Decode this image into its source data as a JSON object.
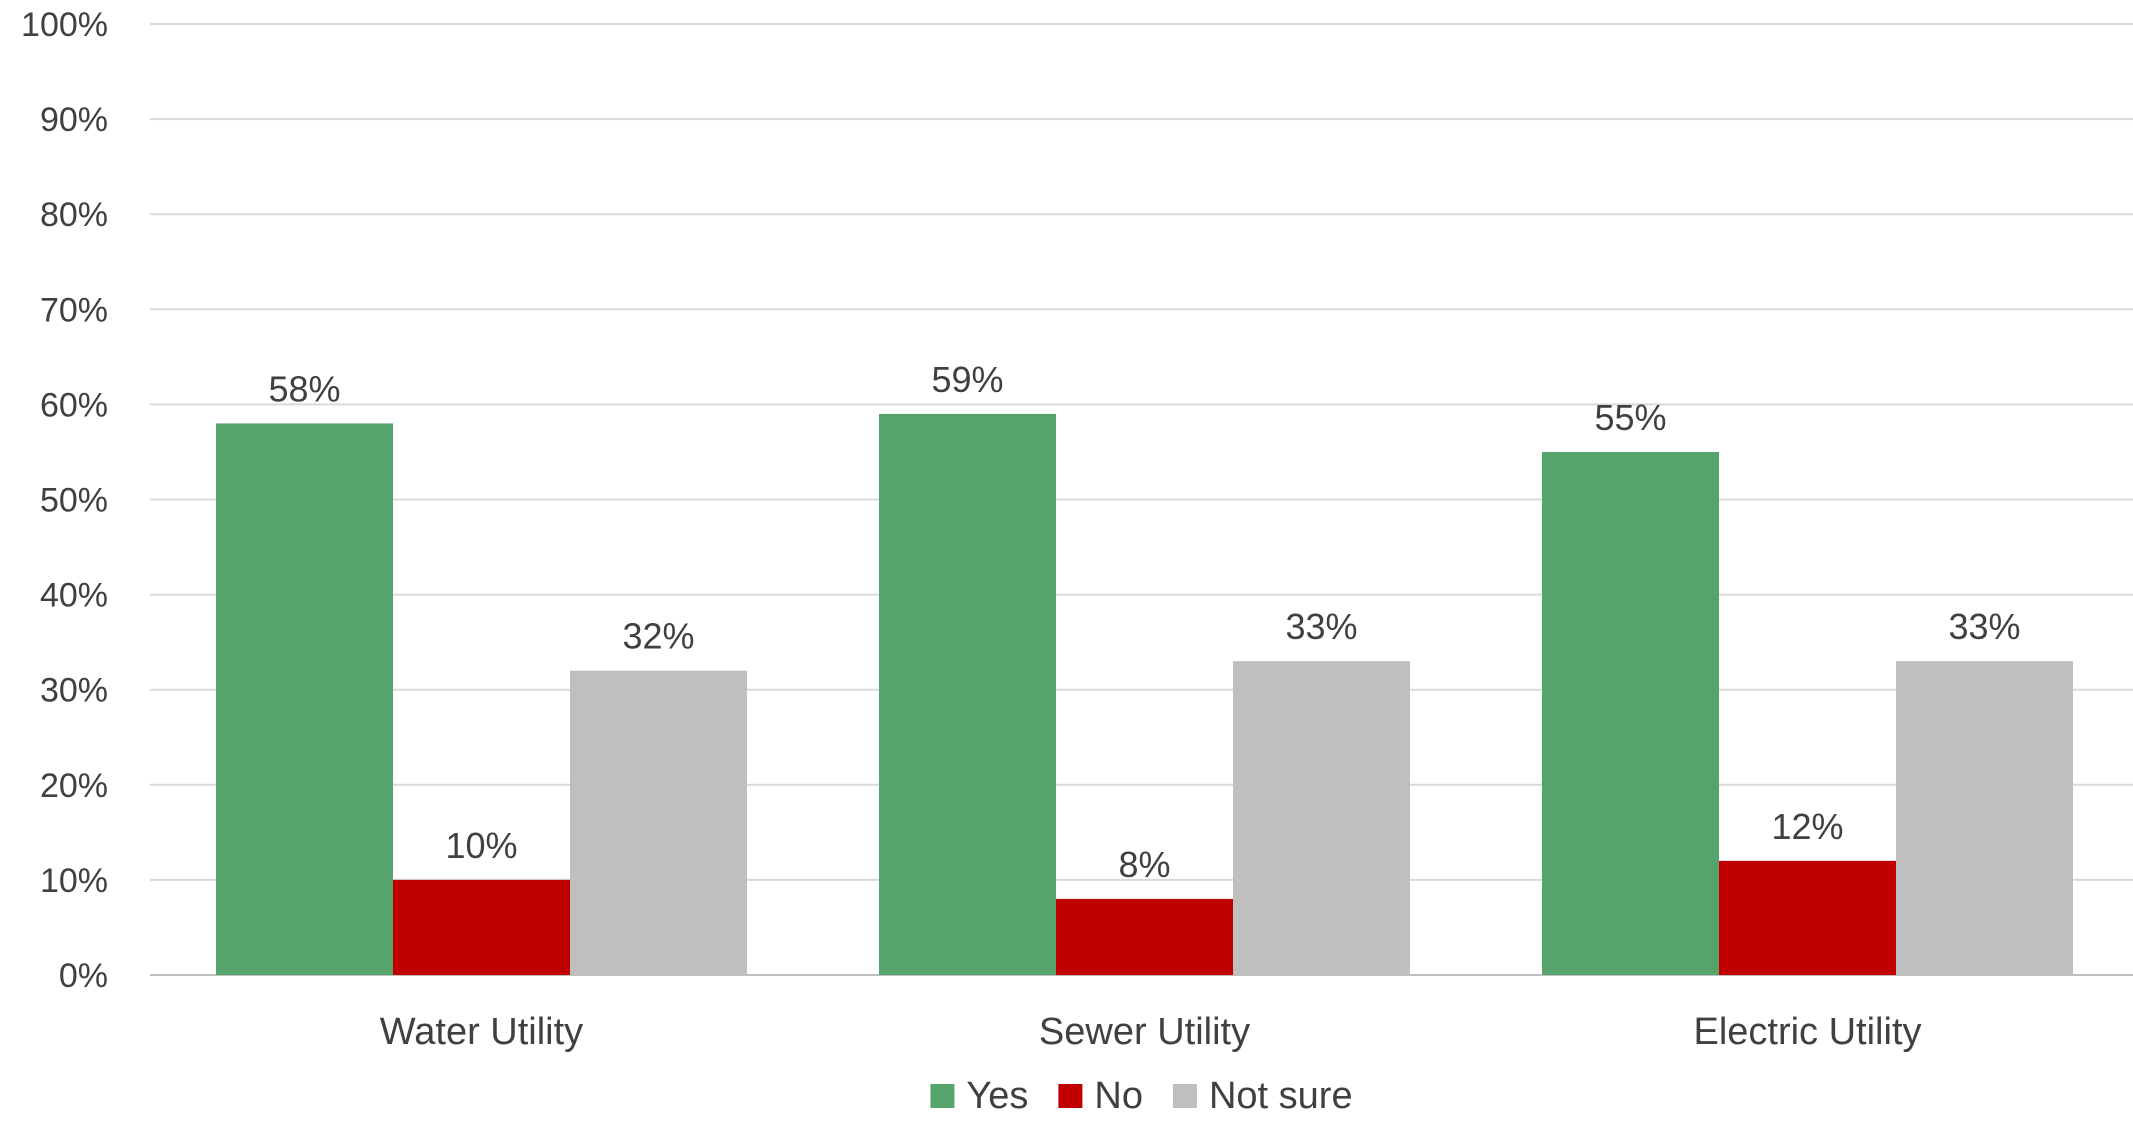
{
  "chart_data": {
    "type": "bar",
    "title": "",
    "xlabel": "",
    "ylabel": "",
    "categories": [
      "Water Utility",
      "Sewer Utility",
      "Electric Utility"
    ],
    "series": [
      {
        "name": "Yes",
        "values": [
          58,
          59,
          55
        ],
        "labels": [
          "58%",
          "59%",
          "55%"
        ],
        "color": "#57a36c"
      },
      {
        "name": "No",
        "values": [
          10,
          8,
          12
        ],
        "labels": [
          "10%",
          "8%",
          "12%"
        ],
        "color": "#c00000"
      },
      {
        "name": "Not sure",
        "values": [
          32,
          33,
          33
        ],
        "labels": [
          "32%",
          "33%",
          "33%"
        ],
        "color": "#bfbfbf"
      }
    ],
    "ylim": [
      0,
      100
    ],
    "yticks": [
      0,
      10,
      20,
      30,
      40,
      50,
      60,
      70,
      80,
      90,
      100
    ],
    "ytick_labels": [
      "0%",
      "10%",
      "20%",
      "30%",
      "40%",
      "50%",
      "60%",
      "70%",
      "80%",
      "90%",
      "100%"
    ],
    "grid": true,
    "legend_position": "bottom-center"
  }
}
